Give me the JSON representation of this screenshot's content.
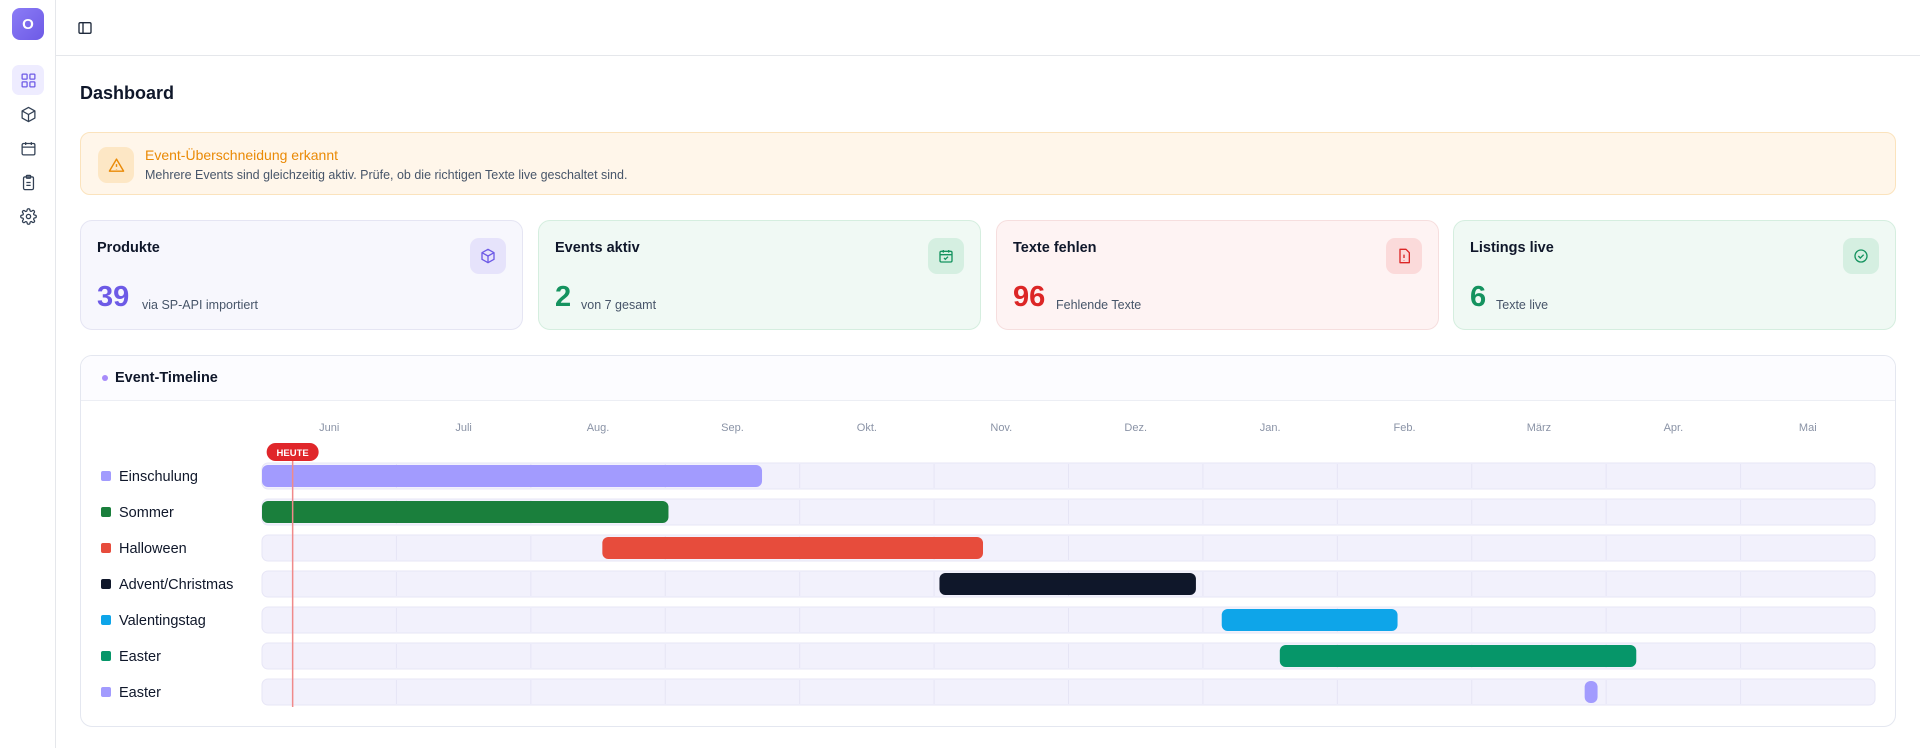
{
  "app": {
    "logo_letter": "O"
  },
  "sidebar": {
    "items": [
      {
        "icon": "dashboard-icon",
        "active": true
      },
      {
        "icon": "box-icon",
        "active": false
      },
      {
        "icon": "calendar-icon",
        "active": false
      },
      {
        "icon": "clipboard-icon",
        "active": false
      },
      {
        "icon": "gear-icon",
        "active": false
      }
    ]
  },
  "page": {
    "title": "Dashboard"
  },
  "alert": {
    "title": "Event-Überschneidung erkannt",
    "text": "Mehrere Events sind gleichzeitig aktiv. Prüfe, ob die richtigen Texte live geschaltet sind."
  },
  "stats": [
    {
      "label": "Produkte",
      "value": "39",
      "sub": "via SP-API importiert",
      "color": "#6d5ae6"
    },
    {
      "label": "Events aktiv",
      "value": "2",
      "sub": "von 7 gesamt",
      "color": "#15935f"
    },
    {
      "label": "Texte fehlen",
      "value": "96",
      "sub": "Fehlende Texte",
      "color": "#dc2626"
    },
    {
      "label": "Listings live",
      "value": "6",
      "sub": "Texte live",
      "color": "#15935f"
    }
  ],
  "timeline": {
    "title": "Event-Timeline",
    "today_label": "HEUTE",
    "today_position": 0.019,
    "months": [
      "Juni",
      "Juli",
      "Aug.",
      "Sep.",
      "Okt.",
      "Nov.",
      "Dez.",
      "Jan.",
      "Feb.",
      "März",
      "Apr.",
      "Mai"
    ],
    "events": [
      {
        "name": "Einschulung",
        "color": "#a29bfe",
        "start": 0.0,
        "end": 0.31
      },
      {
        "name": "Sommer",
        "color": "#1a7f3c",
        "start": 0.0,
        "end": 0.252
      },
      {
        "name": "Halloween",
        "color": "#e74c3c",
        "start": 0.211,
        "end": 0.447
      },
      {
        "name": "Advent/Christmas",
        "color": "#0f172a",
        "start": 0.42,
        "end": 0.579
      },
      {
        "name": "Valentingstag",
        "color": "#0ea5e9",
        "start": 0.595,
        "end": 0.704
      },
      {
        "name": "Easter",
        "color": "#069669",
        "start": 0.631,
        "end": 0.852
      },
      {
        "name": "Easter",
        "color": "#a29bfe",
        "start": 0.82,
        "end": 0.828
      }
    ]
  }
}
